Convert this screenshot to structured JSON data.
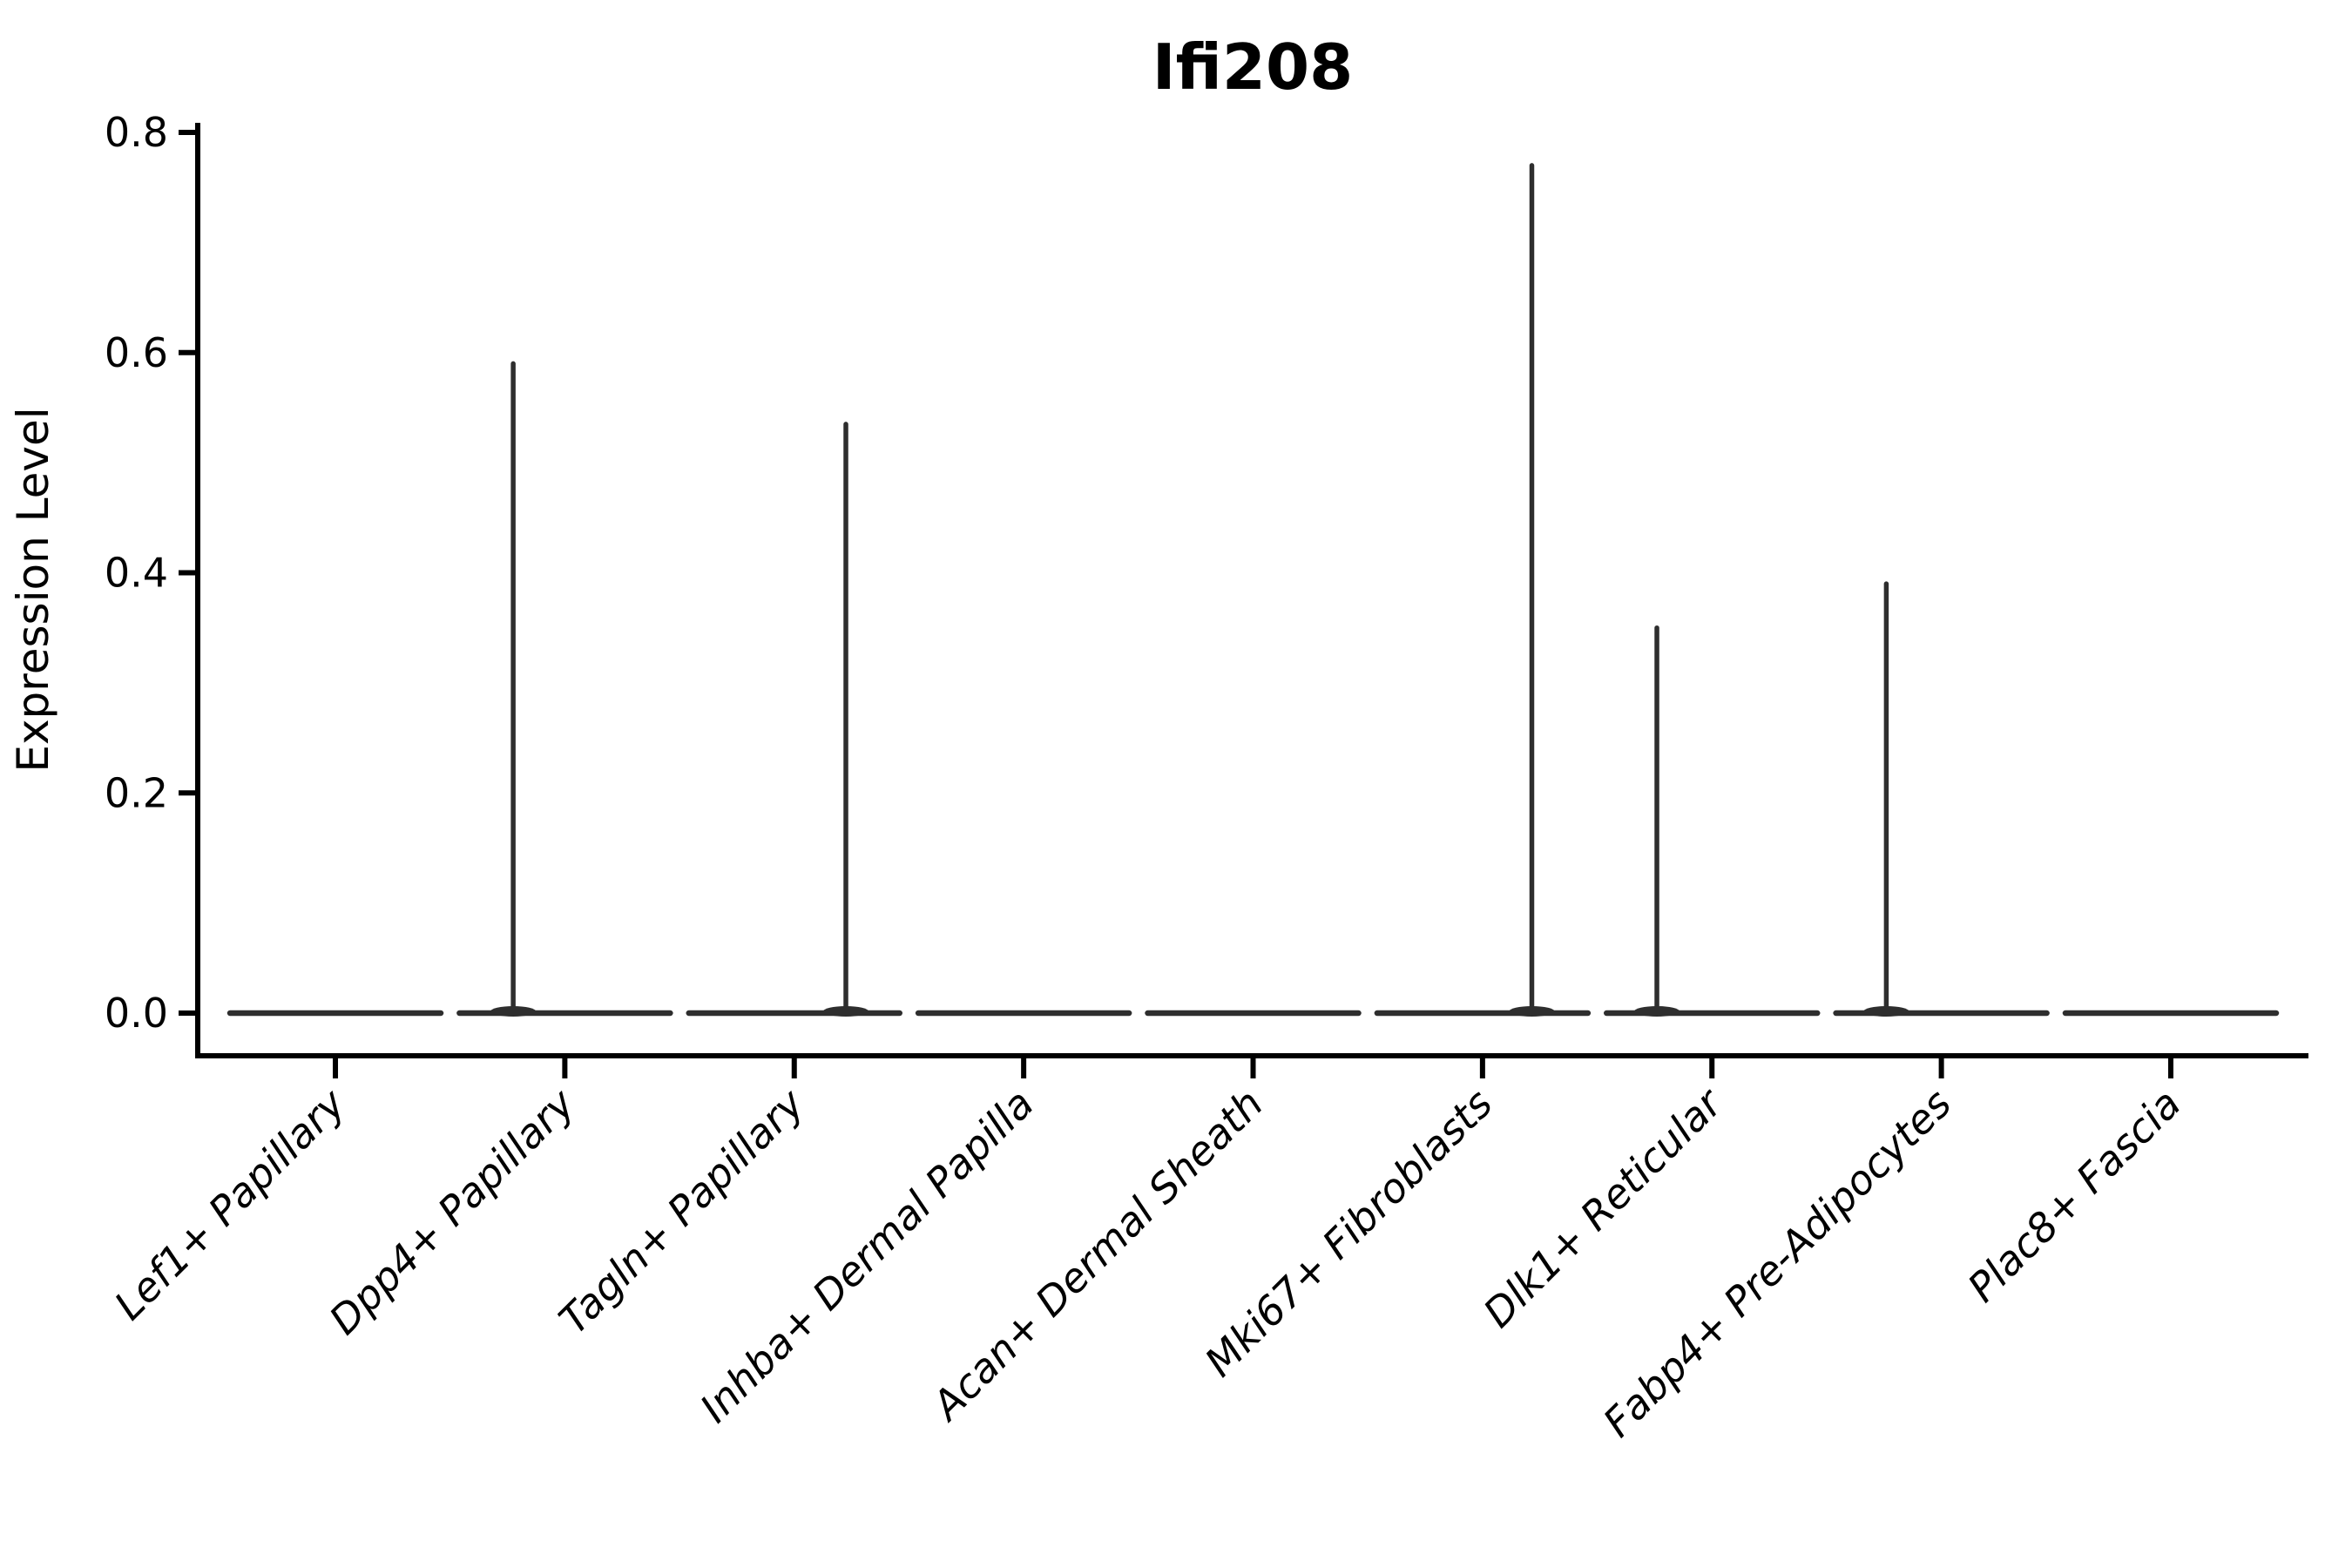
{
  "chart_data": {
    "type": "violin",
    "title": "Ifi208",
    "xlabel": "",
    "ylabel": "Expression Level",
    "ylim": [
      -0.04,
      0.81
    ],
    "yticks": [
      0.0,
      0.2,
      0.4,
      0.6,
      0.8
    ],
    "ytick_labels": [
      "0.0",
      "0.2",
      "0.4",
      "0.6",
      "0.8"
    ],
    "grid": false,
    "legend_position": "none",
    "categories": [
      "Lef1+ Papillary",
      "Dpp4+ Papillary",
      "Tagln+ Papillary",
      "Inhba+ Dermal Papilla",
      "Acan+ Dermal Sheath",
      "Mki67+ Fibroblasts",
      "Dlk1+ Reticular",
      "Fabp4+ Pre-Adipocytes",
      "Plac8+ Fascia"
    ],
    "violins": [
      {
        "category": "Lef1+ Papillary",
        "baseline_value": 0.0,
        "max_expression": 0.0,
        "spike_offset_frac": 0
      },
      {
        "category": "Dpp4+ Papillary",
        "baseline_value": 0.0,
        "max_expression": 0.59,
        "spike_offset_frac": -0.225
      },
      {
        "category": "Tagln+ Papillary",
        "baseline_value": 0.0,
        "max_expression": 0.535,
        "spike_offset_frac": 0.225
      },
      {
        "category": "Inhba+ Dermal Papilla",
        "baseline_value": 0.0,
        "max_expression": 0.0,
        "spike_offset_frac": 0
      },
      {
        "category": "Acan+ Dermal Sheath",
        "baseline_value": 0.0,
        "max_expression": 0.0,
        "spike_offset_frac": 0
      },
      {
        "category": "Mki67+ Fibroblasts",
        "baseline_value": 0.0,
        "max_expression": 0.77,
        "spike_offset_frac": 0.215
      },
      {
        "category": "Dlk1+ Reticular",
        "baseline_value": 0.0,
        "max_expression": 0.35,
        "spike_offset_frac": -0.24
      },
      {
        "category": "Fabp4+ Pre-Adipocytes",
        "baseline_value": 0.0,
        "max_expression": 0.39,
        "spike_offset_frac": -0.24
      },
      {
        "category": "Plac8+ Fascia",
        "baseline_value": 0.0,
        "max_expression": 0.0,
        "spike_offset_frac": 0
      }
    ],
    "style": {
      "background": "#ffffff",
      "axis_color": "#000000",
      "text_color": "#000000",
      "violin_color": "#2e2e2e",
      "xtick_label_style": "italic",
      "xtick_rotation_deg": 45
    }
  }
}
